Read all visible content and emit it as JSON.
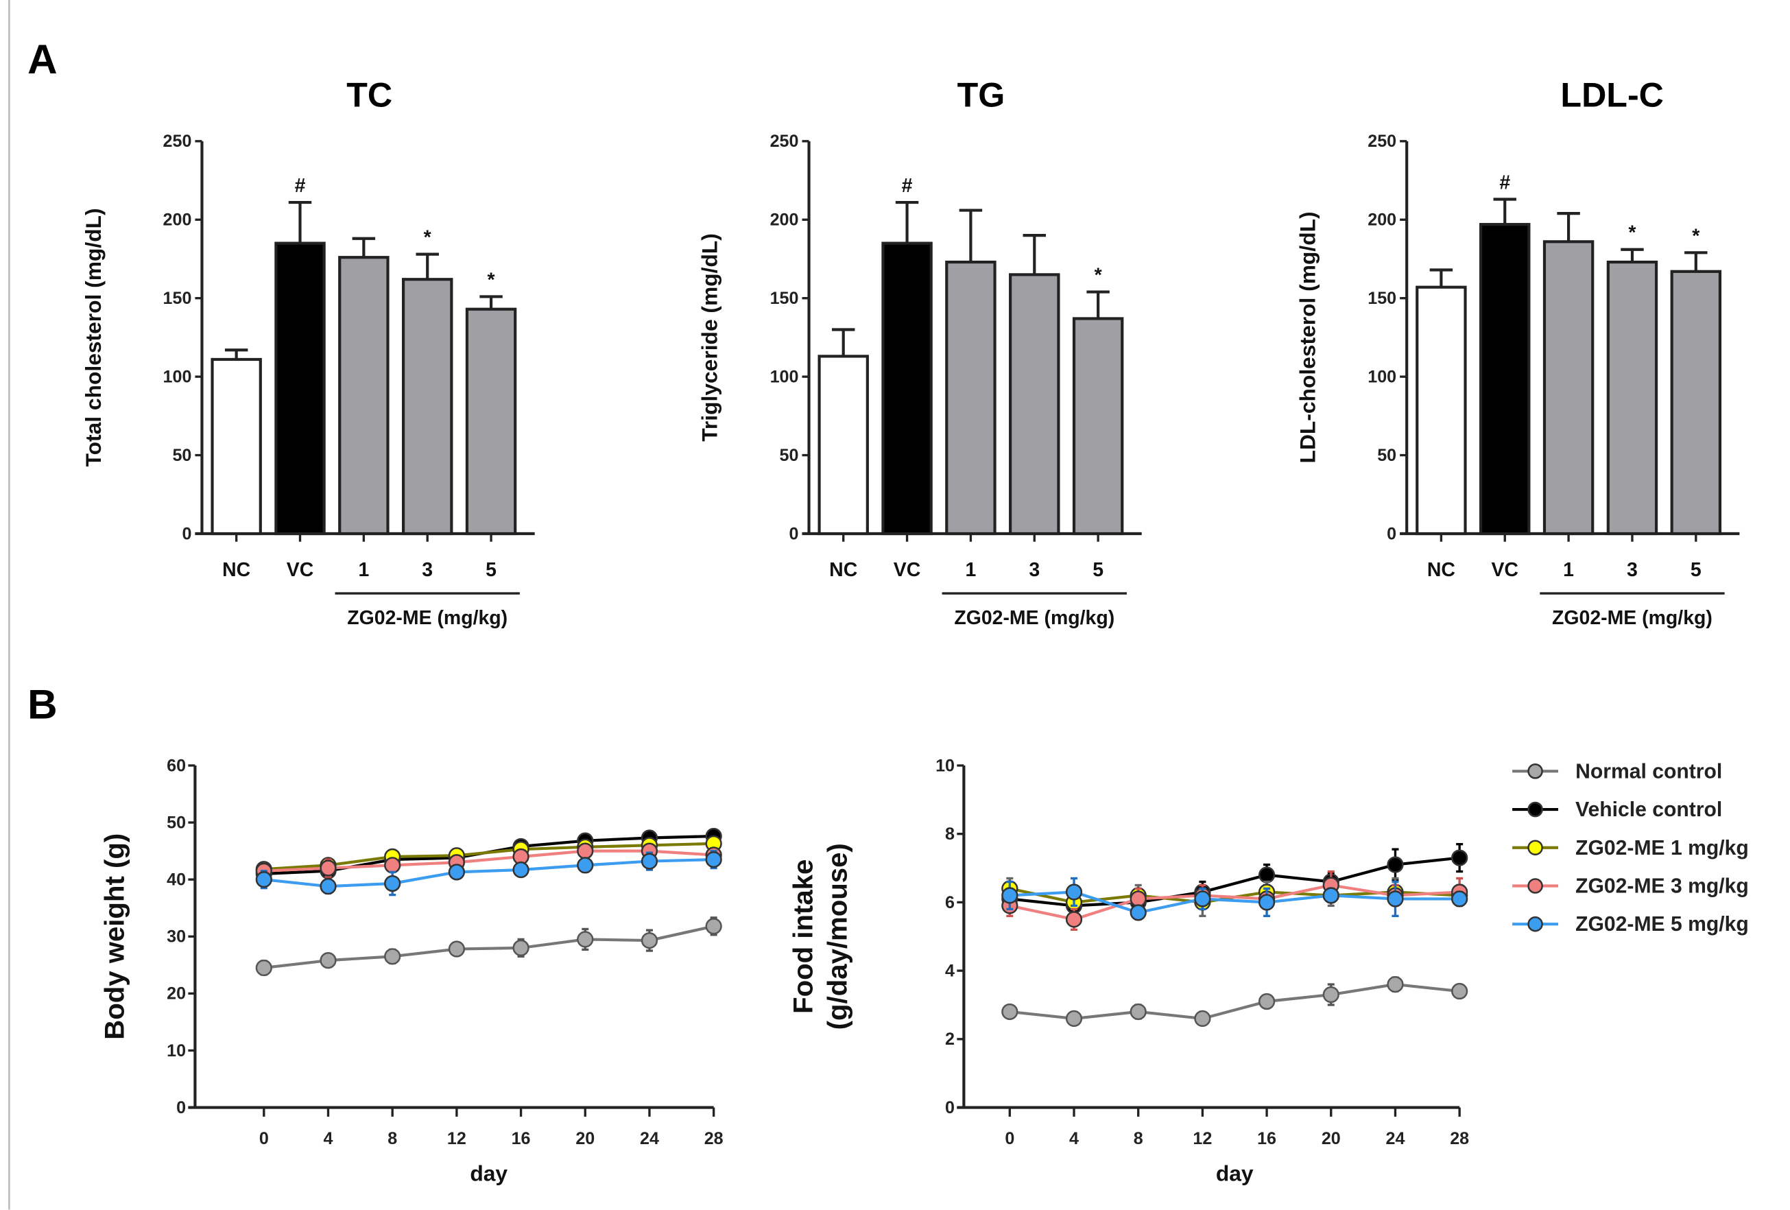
{
  "panels": {
    "a": "A",
    "b": "B"
  },
  "colors": {
    "nc": "#ffffff",
    "vc": "#000000",
    "treat": "#a0a0a4",
    "normal": "#a8a8a8",
    "vehicle": "#000000",
    "zg1": "#ffff00",
    "zg1_line": "#7a7a00",
    "zg3": "#f08080",
    "zg5": "#3b9cf0"
  },
  "chart_data": [
    {
      "type": "bar",
      "title": "TC",
      "ylabel": "Total cholesterol (mg/dL)",
      "ylim": [
        0,
        250
      ],
      "yticks": [
        0,
        50,
        100,
        150,
        200,
        250
      ],
      "categories": [
        "NC",
        "VC",
        "1",
        "3",
        "5"
      ],
      "group_label": "ZG02-ME (mg/kg)",
      "values": [
        111,
        185,
        176,
        162,
        143
      ],
      "errors": [
        6,
        26,
        12,
        16,
        8
      ],
      "annotations": [
        "",
        "#",
        "",
        "*",
        "*"
      ]
    },
    {
      "type": "bar",
      "title": "TG",
      "ylabel": "Triglyceride (mg/dL)",
      "ylim": [
        0,
        250
      ],
      "yticks": [
        0,
        50,
        100,
        150,
        200,
        250
      ],
      "categories": [
        "NC",
        "VC",
        "1",
        "3",
        "5"
      ],
      "group_label": "ZG02-ME (mg/kg)",
      "values": [
        113,
        185,
        173,
        165,
        137
      ],
      "errors": [
        17,
        26,
        33,
        25,
        17
      ],
      "annotations": [
        "",
        "#",
        "",
        "",
        "*"
      ]
    },
    {
      "type": "bar",
      "title": "LDL-C",
      "ylabel": "LDL-cholesterol (mg/dL)",
      "ylim": [
        0,
        250
      ],
      "yticks": [
        0,
        50,
        100,
        150,
        200,
        250
      ],
      "categories": [
        "NC",
        "VC",
        "1",
        "3",
        "5"
      ],
      "group_label": "ZG02-ME (mg/kg)",
      "values": [
        157,
        197,
        186,
        173,
        167
      ],
      "errors": [
        11,
        16,
        18,
        8,
        12
      ],
      "annotations": [
        "",
        "#",
        "",
        "*",
        "*"
      ]
    },
    {
      "type": "line",
      "ylabel": "Body weight (g)",
      "xlabel": "day",
      "ylim": [
        0,
        60
      ],
      "yticks": [
        0,
        10,
        20,
        30,
        40,
        50,
        60
      ],
      "x": [
        0,
        4,
        8,
        12,
        16,
        20,
        24,
        28
      ],
      "series": [
        {
          "name": "Normal control",
          "values": [
            24.5,
            25.8,
            26.5,
            27.8,
            28,
            29.5,
            29.3,
            31.8
          ],
          "errors": [
            1.2,
            0.8,
            1.2,
            0.6,
            1.5,
            1.8,
            1.8,
            1.5
          ]
        },
        {
          "name": "Vehicle control",
          "values": [
            41,
            41.5,
            43.5,
            43.8,
            45.8,
            46.8,
            47.3,
            47.6
          ],
          "errors": [
            1,
            1,
            1,
            1,
            1,
            1,
            1,
            0.8
          ]
        },
        {
          "name": "ZG02-ME 1 mg/kg",
          "values": [
            41.8,
            42.5,
            44,
            44.2,
            45.3,
            45.7,
            46,
            46.3
          ],
          "errors": [
            1,
            1,
            1,
            1,
            1,
            1,
            1,
            1
          ]
        },
        {
          "name": "ZG02-ME 3 mg/kg",
          "values": [
            41.5,
            42,
            42.5,
            43,
            44,
            45,
            45,
            44.3
          ],
          "errors": [
            1,
            1.5,
            1,
            1,
            1,
            1,
            1,
            1
          ]
        },
        {
          "name": "ZG02-ME 5 mg/kg",
          "values": [
            40,
            38.8,
            39.3,
            41.3,
            41.7,
            42.5,
            43.2,
            43.5
          ],
          "errors": [
            1.5,
            1.2,
            2,
            1,
            1,
            1.2,
            1.5,
            1.5
          ]
        }
      ]
    },
    {
      "type": "line",
      "ylabel": "Food intake",
      "ylabel2": "(g/day/mouse)",
      "xlabel": "day",
      "ylim": [
        0,
        10
      ],
      "yticks": [
        0,
        2,
        4,
        6,
        8,
        10
      ],
      "x": [
        0,
        4,
        8,
        12,
        16,
        20,
        24,
        28
      ],
      "series": [
        {
          "name": "Normal control",
          "values": [
            2.8,
            2.6,
            2.8,
            2.6,
            3.1,
            3.3,
            3.6,
            3.4
          ],
          "errors": [
            0.15,
            0.1,
            0.2,
            0.1,
            0.15,
            0.3,
            0.2,
            0.15
          ]
        },
        {
          "name": "Vehicle control",
          "values": [
            6.1,
            5.9,
            6.0,
            6.3,
            6.8,
            6.6,
            7.1,
            7.3
          ],
          "errors": [
            0.3,
            0.3,
            0.3,
            0.3,
            0.3,
            0.25,
            0.45,
            0.4
          ]
        },
        {
          "name": "ZG02-ME 1 mg/kg",
          "values": [
            6.4,
            6.0,
            6.2,
            6.0,
            6.3,
            6.2,
            6.3,
            6.2
          ],
          "errors": [
            0.3,
            0.3,
            0.3,
            0.4,
            0.3,
            0.3,
            0.4,
            0.3
          ]
        },
        {
          "name": "ZG02-ME 3 mg/kg",
          "values": [
            5.9,
            5.5,
            6.1,
            6.2,
            6.1,
            6.5,
            6.2,
            6.3
          ],
          "errors": [
            0.3,
            0.3,
            0.3,
            0.3,
            0.3,
            0.4,
            0.3,
            0.4
          ]
        },
        {
          "name": "ZG02-ME 5 mg/kg",
          "values": [
            6.2,
            6.3,
            5.7,
            6.1,
            6.0,
            6.2,
            6.1,
            6.1
          ],
          "errors": [
            0.4,
            0.4,
            0.2,
            0.3,
            0.4,
            0.2,
            0.5,
            0.2
          ]
        }
      ],
      "legend": "right"
    }
  ]
}
